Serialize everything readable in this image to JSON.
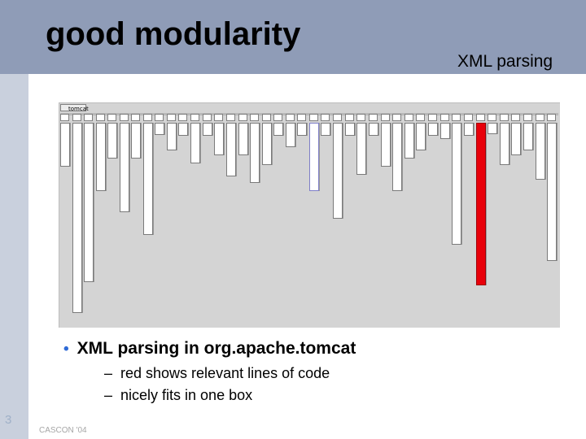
{
  "slide": {
    "title": "good modularity",
    "topic": "XML parsing",
    "number": "3",
    "footer": "CASCON '04"
  },
  "visualization": {
    "root_label": "tomcat",
    "highlight_color": "#e8000a",
    "box_color": "#ffffff",
    "background_color": "#d4d4d4"
  },
  "content": {
    "bullet": "XML parsing in org.apache.tomcat",
    "sub_items": [
      "red shows relevant lines of code",
      "nicely fits in one box"
    ]
  }
}
